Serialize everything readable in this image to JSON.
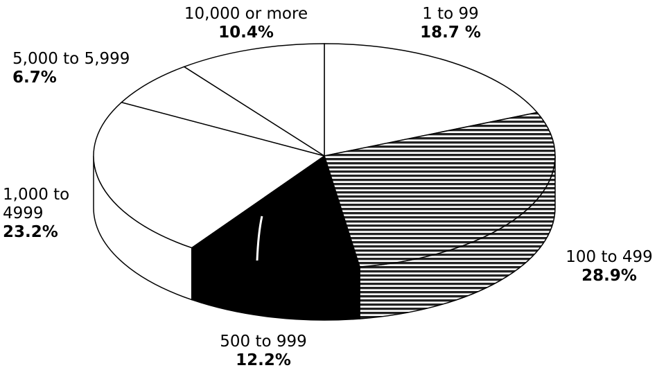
{
  "chart_data": {
    "type": "pie",
    "style": "3d",
    "slices": [
      {
        "label": "1 to 99",
        "value": 18.7,
        "value_label": "18.7 %",
        "fill": "white"
      },
      {
        "label": "100 to 499",
        "value": 28.9,
        "value_label": "28.9%",
        "fill": "horizontal-hatch"
      },
      {
        "label": "500 to 999",
        "value": 12.2,
        "value_label": "12.2%",
        "fill": "black"
      },
      {
        "label": "1,000 to 4999",
        "value": 23.2,
        "value_label": "23.2%",
        "fill": "white"
      },
      {
        "label": "5,000 to 5,999",
        "value": 6.7,
        "value_label": "6.7%",
        "fill": "white"
      },
      {
        "label": "10,000 or more",
        "value": 10.4,
        "value_label": "10.4%",
        "fill": "white"
      }
    ],
    "legend": "none"
  }
}
